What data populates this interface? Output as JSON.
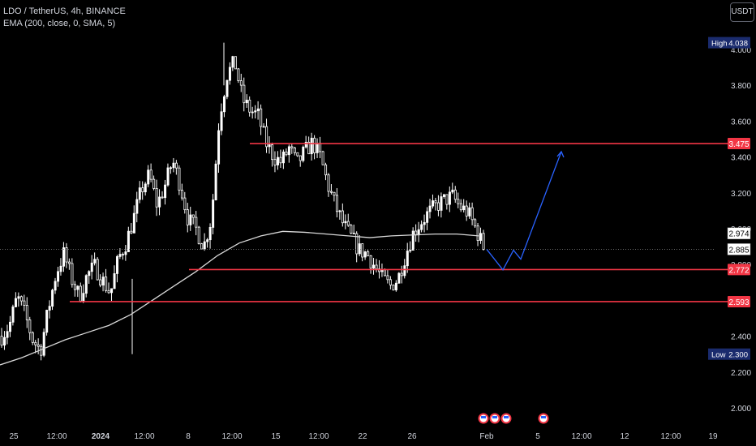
{
  "legend": {
    "symbol_line": "LDO / TetherUS, 4h, BINANCE",
    "indicator_line": "EMA (200, close, 0, SMA, 5)"
  },
  "currency_button": "USDT",
  "colors": {
    "background": "#000000",
    "candle_up": "#ffffff",
    "candle_down": "#ffffff",
    "ema": "#d9d9d9",
    "level_line": "#f23645",
    "projection": "#2962ff",
    "badge_navy": "#1a2b6d",
    "text": "#d1d4dc"
  },
  "chart_data": {
    "type": "candlestick",
    "symbol": "LDO / TetherUS",
    "timeframe": "4h",
    "exchange": "BINANCE",
    "y_scale": "linear",
    "ylim": [
      1.9,
      4.14
    ],
    "y_ticks": [
      "4.000",
      "3.800",
      "3.600",
      "3.400",
      "3.200",
      "3.000",
      "2.800",
      "2.400",
      "2.200",
      "2.000"
    ],
    "x_ticks": [
      "25",
      "12:00",
      "2024",
      "12:00",
      "8",
      "12:00",
      "15",
      "12:00",
      "22",
      "26",
      "Feb",
      "5",
      "12:00",
      "12",
      "12:00",
      "19"
    ],
    "close_path": [
      2.4,
      2.46,
      2.62,
      2.52,
      2.38,
      2.32,
      2.55,
      2.75,
      2.86,
      2.72,
      2.62,
      2.74,
      2.79,
      2.71,
      2.64,
      2.83,
      2.92,
      3.06,
      3.22,
      3.3,
      3.13,
      3.24,
      3.38,
      3.24,
      3.05,
      3.0,
      2.9,
      3.06,
      3.62,
      3.86,
      3.93,
      3.72,
      3.66,
      3.63,
      3.48,
      3.4,
      3.37,
      3.45,
      3.36,
      3.43,
      3.48,
      3.4,
      3.24,
      3.12,
      3.02,
      2.95,
      2.88,
      2.86,
      2.79,
      2.72,
      2.68,
      2.72,
      2.86,
      2.98,
      3.04,
      3.09,
      3.13,
      3.16,
      3.18,
      3.12,
      3.09,
      3.0,
      2.9
    ],
    "ema": {
      "name": "EMA (200, close, 0, SMA, 5)",
      "values": [
        2.24,
        2.28,
        2.33,
        2.38,
        2.42,
        2.46,
        2.52,
        2.6,
        2.68,
        2.76,
        2.85,
        2.92,
        2.96,
        2.985,
        2.98,
        2.97,
        2.96,
        2.95,
        2.96,
        2.965,
        2.97,
        2.97,
        2.96
      ]
    },
    "horizontal_levels": [
      {
        "price": 3.475,
        "label": "3.475"
      },
      {
        "price": 2.772,
        "label": "2.772"
      },
      {
        "price": 2.593,
        "label": "2.593"
      }
    ],
    "price_labels": {
      "high": {
        "caption": "High",
        "value": "4.038"
      },
      "low": {
        "caption": "Low",
        "value": "2.300"
      },
      "ema_value": "2.974",
      "last_price": "2.885"
    },
    "projection_path": [
      2.885,
      2.77,
      2.88,
      2.83,
      3.43
    ],
    "event_markers": 4
  }
}
